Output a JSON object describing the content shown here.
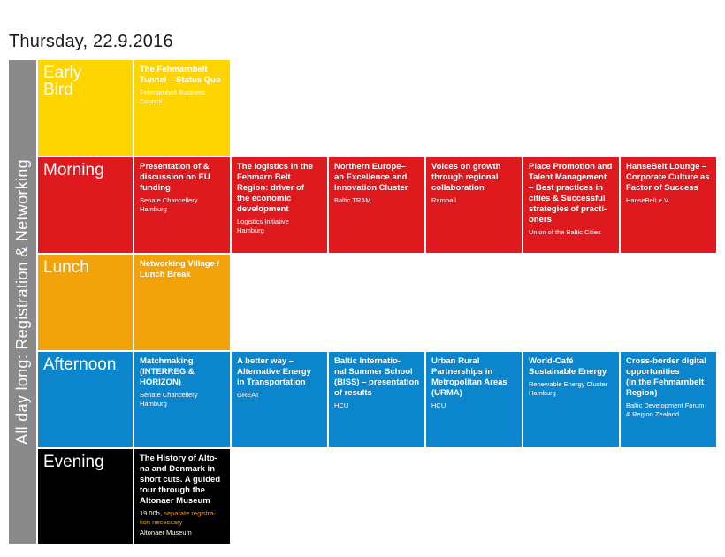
{
  "page": {
    "title": "Thursday, 22.9.2016"
  },
  "sidebar": {
    "label": "All day long: Registration & Networking"
  },
  "colors": {
    "early": "#ffd500",
    "morning": "#de1a1f",
    "lunch": "#f3a30a",
    "afternoon": "#0b86cc",
    "evening": "#000000",
    "side": "#8a8a8a",
    "highlight": "#f39c00"
  },
  "rows": {
    "early": {
      "label": "Early\nBird",
      "sessions": [
        {
          "title": "The Fehmarnbelt\nTunnel – Status Quo",
          "org": "Fehmarnbelt Business\nCouncil"
        }
      ]
    },
    "morning": {
      "label": "Morning",
      "sessions": [
        {
          "title": "Presentation of &\ndiscussion on EU\nfunding",
          "org": "Senate Chancellery\nHamburg"
        },
        {
          "title": "The logistics in the\nFehmarn Belt\nRegion: driver of\nthe economic\ndevelopment",
          "org": "Logistics Initiative\nHamburg"
        },
        {
          "title": "Northern Europe–\nan Excellence and\nInnovation Cluster",
          "org": "Baltic TRAM"
        },
        {
          "title": "Voices on growth\nthrough regional\ncollaboration",
          "org": "Rambøll"
        },
        {
          "title": "Place Promotion and\nTalent Management\n– Best practices in\ncities & Successful\nstrategies of practi-\noners",
          "org": "Union of the Baltic Cities"
        },
        {
          "title": "HanseBelt Lounge –\nCorporate Culture as\nFactor of Success",
          "org": "HanseBelt e.V."
        }
      ]
    },
    "lunch": {
      "label": "Lunch",
      "sessions": [
        {
          "title": "Networking Village /\nLunch Break"
        }
      ]
    },
    "afternoon": {
      "label": "Afternoon",
      "sessions": [
        {
          "title": "Matchmaking\n(INTERREG &\nHORIZON)",
          "org": "Senate Chancellery\nHamburg"
        },
        {
          "title": "A better way –\nAlternative Energy\nin Transportation",
          "org": "GREAT"
        },
        {
          "title": "Baltic Internatio-\nnal Summer School\n(BISS) – presentation\nof results",
          "org": "HCU"
        },
        {
          "title": "Urban Rural\nPartnerships in\nMetropolitan Areas\n(URMA)",
          "org": "HCU"
        },
        {
          "title": "World-Café\nSustainable Energy",
          "org": "Renewable Energy Cluster\nHamburg"
        },
        {
          "title": "Cross-border digital\nopportunities\n(in the Fehmarnbelt\nRegion)",
          "org": "Baltic Development Forum\n& Region Zealand"
        }
      ]
    },
    "evening": {
      "label": "Evening",
      "sessions": [
        {
          "title": "The History of Alto-\nna and Denmark in\nshort cuts. A guided\ntour through the\nAltonaer Museum",
          "time": "19.00h,",
          "note": "separate registra-\ntion necessary",
          "org": "Altonaer Museum"
        }
      ]
    }
  }
}
